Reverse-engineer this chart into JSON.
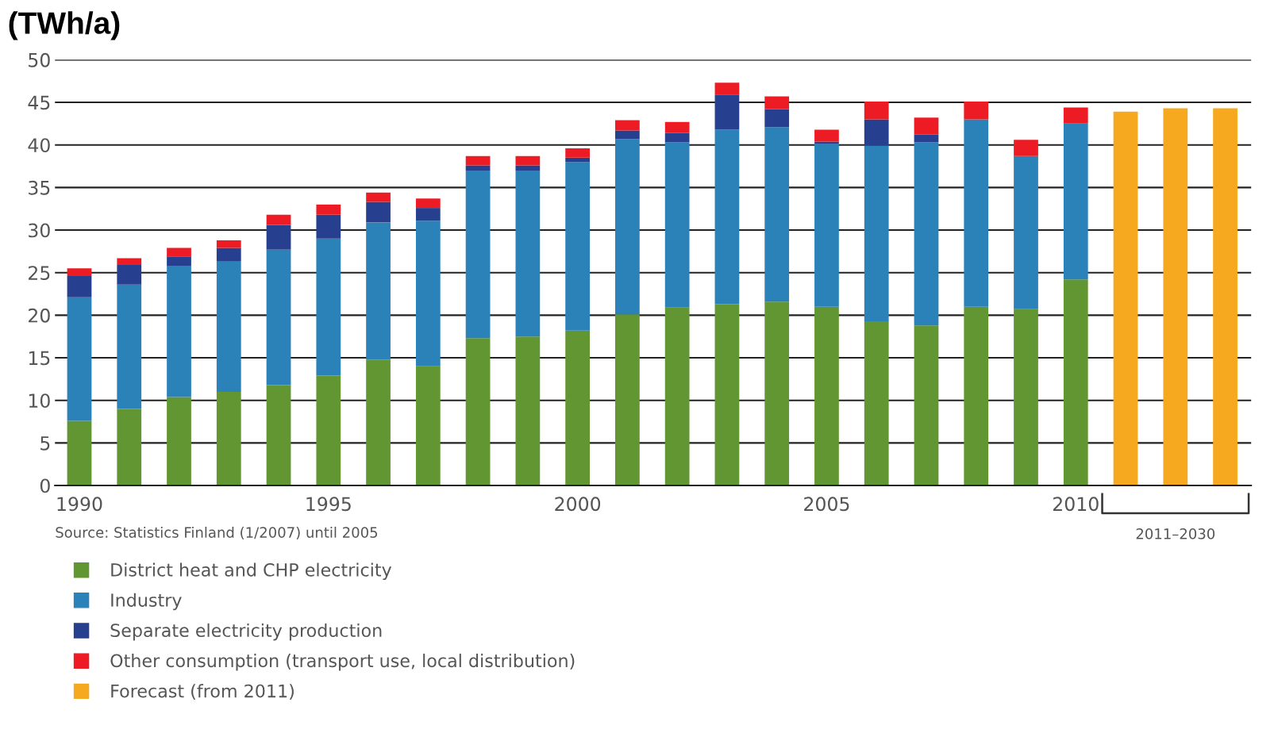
{
  "chart_data": {
    "type": "bar",
    "stacked": true,
    "ylabel": "(TWh/a)",
    "categories": [
      "1990",
      null,
      null,
      null,
      null,
      "1995",
      null,
      null,
      null,
      null,
      "2000",
      null,
      null,
      null,
      null,
      "2005",
      null,
      null,
      null,
      null,
      "2010",
      null,
      null,
      null
    ],
    "series": [
      {
        "name": "District heat and CHP electricity",
        "color": "#629632",
        "values": [
          7.6,
          9.0,
          10.4,
          11.0,
          11.8,
          12.9,
          14.8,
          14.0,
          17.3,
          17.5,
          18.2,
          20.1,
          20.9,
          21.3,
          21.6,
          21.0,
          19.3,
          18.8,
          21.0,
          20.7,
          24.2,
          null,
          null,
          null
        ]
      },
      {
        "name": "Industry",
        "color": "#2a82b8",
        "values": [
          14.5,
          14.6,
          15.4,
          15.3,
          15.9,
          16.1,
          16.1,
          17.1,
          19.7,
          19.5,
          19.8,
          20.6,
          19.4,
          20.5,
          20.5,
          19.1,
          20.6,
          21.5,
          22.0,
          18.0,
          18.3,
          null,
          null,
          null
        ]
      },
      {
        "name": "Separate electricity production",
        "color": "#26408f",
        "values": [
          2.5,
          2.3,
          1.1,
          1.6,
          2.9,
          2.8,
          2.4,
          1.5,
          0.6,
          0.6,
          0.5,
          1.0,
          1.1,
          4.1,
          2.1,
          0.3,
          3.1,
          0.9,
          0,
          0,
          0,
          null,
          null,
          null
        ]
      },
      {
        "name": "Other consumption (transport use, local distribution)",
        "color": "#ed1c24",
        "values": [
          0.9,
          0.8,
          1.0,
          0.9,
          1.2,
          1.2,
          1.1,
          1.1,
          1.1,
          1.1,
          1.1,
          1.2,
          1.3,
          1.4,
          1.5,
          1.4,
          2.1,
          2.0,
          2.1,
          1.9,
          1.9,
          null,
          null,
          null
        ]
      },
      {
        "name": "Forecast (from 2011)",
        "color": "#f6a81e",
        "values": [
          null,
          null,
          null,
          null,
          null,
          null,
          null,
          null,
          null,
          null,
          null,
          null,
          null,
          null,
          null,
          null,
          null,
          null,
          null,
          null,
          null,
          43.9,
          44.3,
          44.3
        ]
      }
    ],
    "ylim": [
      0,
      50
    ],
    "yticks": [
      0,
      5,
      10,
      15,
      20,
      25,
      30,
      35,
      40,
      45,
      50
    ],
    "grid": "y",
    "legend": "bottom",
    "annotations": [
      "Source: Statistics Finland (1/2007) until 2005",
      "2011–2030"
    ]
  }
}
